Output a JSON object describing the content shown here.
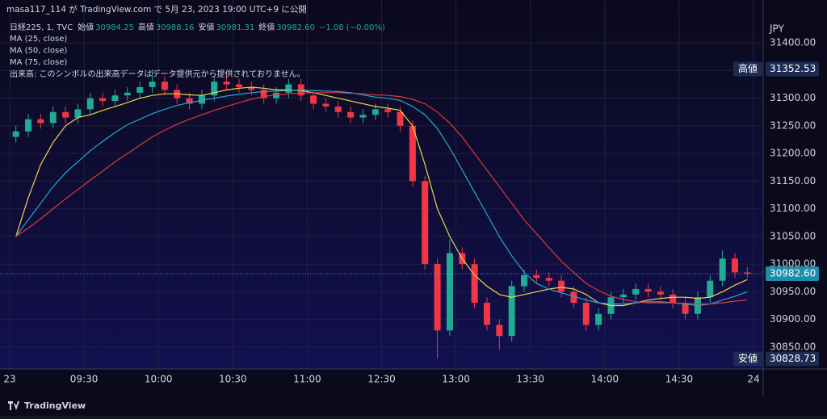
{
  "header": "masa117_114 が TradingView.com で 5月 23, 2023 19:00 UTC+9 に公開",
  "legend": {
    "symbol": "日経225, 1, TVC",
    "ohlc": [
      {
        "label": "始値",
        "value": "30984.25"
      },
      {
        "label": "高値",
        "value": "30988.16"
      },
      {
        "label": "安値",
        "value": "30981.31"
      },
      {
        "label": "終値",
        "value": "30982.60"
      }
    ],
    "change": "−1.08 (−0.00%)",
    "volume_note": "出来高: このシンボルの出来高データはデータ提供元から提供されておりません。"
  },
  "footer": "TradingView",
  "chart_data": {
    "type": "candlestick",
    "currency": "JPY",
    "x": [
      "09:00",
      "09:05",
      "09:10",
      "09:15",
      "09:20",
      "09:25",
      "09:30",
      "09:35",
      "09:40",
      "09:45",
      "09:50",
      "09:55",
      "10:00",
      "10:05",
      "10:10",
      "10:15",
      "10:20",
      "10:25",
      "10:30",
      "10:35",
      "10:40",
      "10:45",
      "10:50",
      "10:55",
      "11:00",
      "11:05",
      "11:10",
      "11:15",
      "11:20",
      "11:25",
      "12:30",
      "12:35",
      "12:40",
      "12:45",
      "12:50",
      "12:55",
      "13:00",
      "13:05",
      "13:10",
      "13:15",
      "13:20",
      "13:25",
      "13:30",
      "13:35",
      "13:40",
      "13:45",
      "13:50",
      "13:55",
      "14:00",
      "14:05",
      "14:10",
      "14:15",
      "14:20",
      "14:25",
      "14:30",
      "14:35",
      "14:40",
      "14:45",
      "14:50",
      "14:55"
    ],
    "open": [
      31230,
      31240,
      31262,
      31255,
      31275,
      31265,
      31280,
      31300,
      31295,
      31305,
      31310,
      31320,
      31330,
      31315,
      31300,
      31290,
      31305,
      31330,
      31325,
      31320,
      31315,
      31300,
      31310,
      31325,
      31305,
      31290,
      31285,
      31275,
      31265,
      31270,
      31280,
      31275,
      31250,
      31150,
      31000,
      30880,
      31020,
      31000,
      30930,
      30890,
      30870,
      30960,
      30980,
      30975,
      30970,
      30950,
      30930,
      30890,
      30910,
      30940,
      30945,
      30955,
      30950,
      30945,
      30930,
      30910,
      30940,
      30970,
      31010,
      30985
    ],
    "high": [
      31250,
      31272,
      31272,
      31285,
      31285,
      31290,
      31310,
      31310,
      31315,
      31320,
      31330,
      31352.53,
      31340,
      31325,
      31310,
      31315,
      31340,
      31340,
      31335,
      31330,
      31325,
      31320,
      31335,
      31335,
      31315,
      31300,
      31295,
      31285,
      31280,
      31290,
      31290,
      31285,
      31260,
      31160,
      31010,
      31045,
      31030,
      31010,
      30940,
      30900,
      30970,
      30990,
      30990,
      30985,
      30980,
      30960,
      30940,
      30920,
      30950,
      30955,
      30965,
      30965,
      30960,
      30955,
      30940,
      30950,
      30980,
      31025,
      31020,
      30995
    ],
    "low": [
      31220,
      31230,
      31245,
      31245,
      31255,
      31255,
      31270,
      31285,
      31285,
      31295,
      31300,
      31310,
      31305,
      31290,
      31280,
      31280,
      31295,
      31315,
      31310,
      31305,
      31290,
      31290,
      31300,
      31295,
      31280,
      31275,
      31265,
      31255,
      31255,
      31260,
      31265,
      31240,
      31140,
      30990,
      30828.73,
      30870,
      30990,
      30920,
      30880,
      30845,
      30860,
      30950,
      30965,
      30960,
      30940,
      30920,
      30880,
      30880,
      30900,
      30930,
      30935,
      30940,
      30935,
      30920,
      30900,
      30900,
      30930,
      30960,
      30975,
      30975
    ],
    "close": [
      31240,
      31262,
      31255,
      31275,
      31265,
      31280,
      31300,
      31295,
      31305,
      31310,
      31320,
      31330,
      31315,
      31300,
      31290,
      31305,
      31330,
      31325,
      31320,
      31315,
      31300,
      31310,
      31325,
      31305,
      31290,
      31285,
      31275,
      31265,
      31270,
      31280,
      31275,
      31250,
      31150,
      31000,
      30880,
      31020,
      31000,
      30930,
      30890,
      30870,
      30960,
      30980,
      30975,
      30970,
      30950,
      30930,
      30890,
      30910,
      30940,
      30945,
      30955,
      30950,
      30945,
      30930,
      30910,
      30940,
      30970,
      31010,
      30985,
      30982.6
    ],
    "up_color": "#22ab94",
    "down_color": "#f23645",
    "series": [
      {
        "name": "MA (25, close)",
        "color": "#f2d24b",
        "values": [
          31050,
          31120,
          31180,
          31220,
          31250,
          31265,
          31270,
          31278,
          31285,
          31292,
          31300,
          31305,
          31308,
          31308,
          31306,
          31305,
          31310,
          31315,
          31318,
          31320,
          31318,
          31315,
          31315,
          31314,
          31310,
          31305,
          31300,
          31295,
          31290,
          31285,
          31282,
          31278,
          31250,
          31180,
          31100,
          31050,
          31010,
          30980,
          30960,
          30945,
          30940,
          30945,
          30950,
          30955,
          30958,
          30955,
          30945,
          30930,
          30925,
          30925,
          30930,
          30935,
          30938,
          30940,
          30940,
          30938,
          30940,
          30950,
          30962,
          30972
        ]
      },
      {
        "name": "MA (50, close)",
        "color": "#2aa6cf",
        "values": [
          31050,
          31080,
          31110,
          31140,
          31165,
          31185,
          31205,
          31222,
          31238,
          31252,
          31262,
          31272,
          31280,
          31287,
          31292,
          31296,
          31300,
          31304,
          31307,
          31310,
          31312,
          31313,
          31314,
          31315,
          31314,
          31313,
          31312,
          31310,
          31306,
          31302,
          31300,
          31296,
          31285,
          31270,
          31245,
          31210,
          31170,
          31130,
          31090,
          31050,
          31015,
          30985,
          30965,
          30955,
          30948,
          30942,
          30935,
          30930,
          30928,
          30928,
          30930,
          30932,
          30932,
          30930,
          30928,
          30925,
          30928,
          30935,
          30942,
          30950
        ]
      },
      {
        "name": "MA (75, close)",
        "color": "#e0393e",
        "values": [
          31050,
          31065,
          31082,
          31100,
          31118,
          31135,
          31152,
          31168,
          31185,
          31200,
          31215,
          31230,
          31242,
          31253,
          31262,
          31270,
          31278,
          31285,
          31292,
          31298,
          31303,
          31306,
          31308,
          31309,
          31310,
          31310,
          31310,
          31309,
          31308,
          31306,
          31305,
          31303,
          31298,
          31290,
          31275,
          31255,
          31230,
          31200,
          31170,
          31140,
          31110,
          31080,
          31055,
          31030,
          31005,
          30985,
          30965,
          30952,
          30942,
          30936,
          30932,
          30930,
          30930,
          30930,
          30929,
          30928,
          30928,
          30930,
          30933,
          30935
        ]
      }
    ],
    "ylim": [
      30810.4,
      31445.5
    ],
    "yticks": [
      {
        "value": 31400,
        "label": "31400.00"
      },
      {
        "value": 31350,
        "label": "31350.00"
      },
      {
        "value": 31300,
        "label": "31300.00"
      },
      {
        "value": 31250,
        "label": "31250.00"
      },
      {
        "value": 31200,
        "label": "31200.00"
      },
      {
        "value": 31150,
        "label": "31150.00"
      },
      {
        "value": 31100,
        "label": "31100.00"
      },
      {
        "value": 31050,
        "label": "31050.00"
      },
      {
        "value": 31000,
        "label": "31000.00"
      },
      {
        "value": 30950,
        "label": "30950.00"
      },
      {
        "value": 30900,
        "label": "30900.00"
      },
      {
        "value": 30850,
        "label": "30850.00"
      }
    ],
    "xticks": [
      {
        "value": "09:00",
        "label": "23"
      },
      "09:30",
      "10:00",
      "10:30",
      "11:00",
      "12:30",
      "13:00",
      "13:30",
      "14:00",
      "14:30",
      {
        "value": "15:00",
        "label": "24"
      }
    ],
    "grid": true,
    "badges": {
      "high_label": "高値",
      "low_label": "安値"
    }
  }
}
